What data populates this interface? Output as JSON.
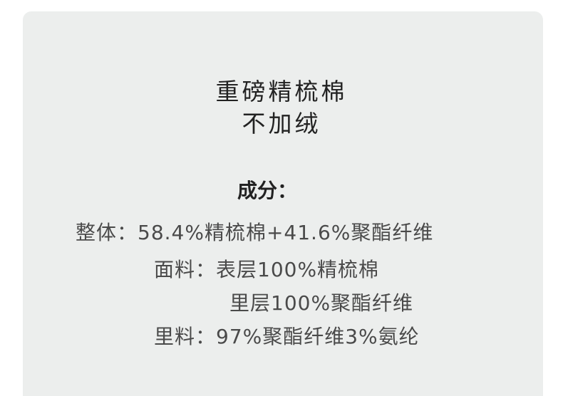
{
  "heading": {
    "line1": "重磅精梳棉",
    "line2": "不加绒"
  },
  "composition": {
    "label": "成分：",
    "lines": [
      "整体：58.4%精梳棉+41.6%聚酯纤维",
      "面料：表层100%精梳棉",
      "里层100%聚酯纤维",
      "里料：97%聚酯纤维3%氨纶"
    ]
  },
  "colors": {
    "card_background": "#eceeed",
    "text": "#4a4a4a"
  }
}
